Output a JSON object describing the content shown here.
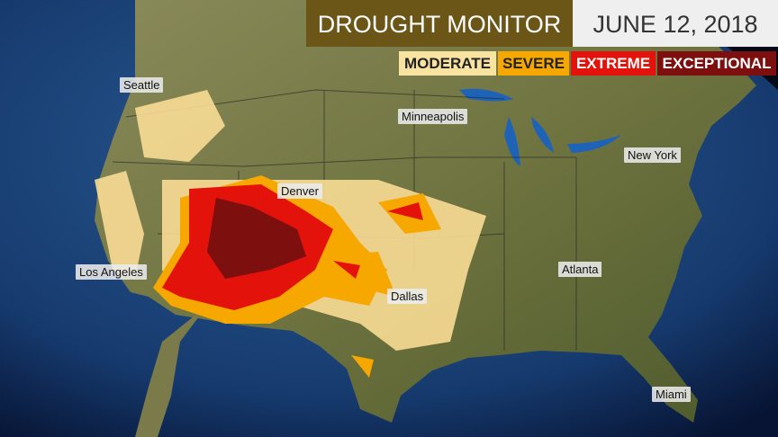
{
  "header": {
    "title": "DROUGHT MONITOR",
    "date": "JUNE 12, 2018"
  },
  "legend": [
    "MODERATE",
    "SEVERE",
    "EXTREME",
    "EXCEPTIONAL"
  ],
  "cities": [
    "Seattle",
    "Minneapolis",
    "New York",
    "Denver",
    "Los Angeles",
    "Atlanta",
    "Dallas",
    "Miami"
  ]
}
